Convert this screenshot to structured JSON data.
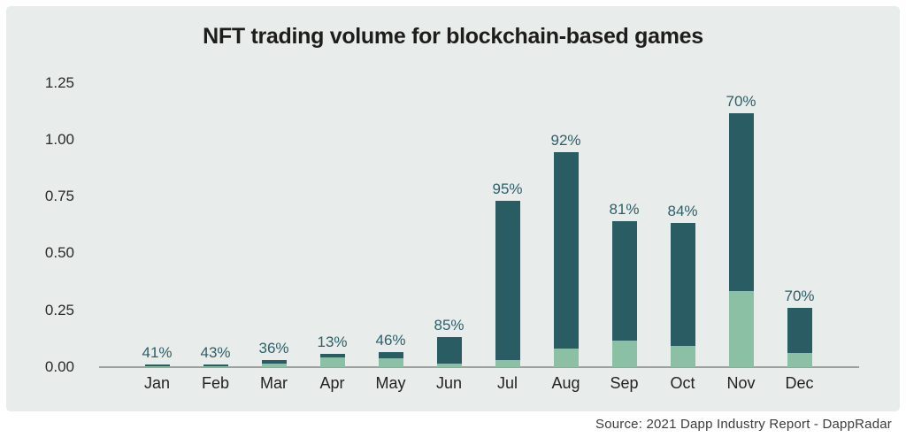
{
  "title": "NFT trading volume for blockchain-based games",
  "source": "Source: 2021 Dapp Industry Report - DappRadar",
  "colors": {
    "panel_background": "#e8ecea",
    "outer_background": "#ffffff",
    "dark_teal": "#2a5c63",
    "light_green": "#8bc0a4",
    "axis_line": "#9aa19e",
    "percent_label": "#2d6068",
    "axis_text": "#2a2a28",
    "title_text": "#1d1d1b",
    "source_text": "#3c3c3c"
  },
  "chart_data": {
    "type": "bar",
    "stacked": true,
    "title": "NFT trading volume for blockchain-based games",
    "categories": [
      "Jan",
      "Feb",
      "Mar",
      "Apr",
      "May",
      "Jun",
      "Jul",
      "Aug",
      "Sep",
      "Oct",
      "Nov",
      "Dec"
    ],
    "series": [
      {
        "name": "bottom-segment-light-green",
        "color": "#8bc0a4",
        "values": [
          0.002,
          0.003,
          0.016,
          0.044,
          0.039,
          0.017,
          0.032,
          0.082,
          0.116,
          0.092,
          0.333,
          0.062
        ]
      },
      {
        "name": "top-segment-dark-teal",
        "color": "#2a5c63",
        "values": [
          0.008,
          0.009,
          0.014,
          0.013,
          0.029,
          0.115,
          0.7,
          0.863,
          0.524,
          0.543,
          0.782,
          0.198
        ]
      }
    ],
    "totals": [
      0.01,
      0.012,
      0.03,
      0.057,
      0.068,
      0.132,
      0.732,
      0.945,
      0.64,
      0.635,
      1.115,
      0.26
    ],
    "bar_labels": [
      "41%",
      "43%",
      "36%",
      "13%",
      "46%",
      "85%",
      "95%",
      "92%",
      "81%",
      "84%",
      "70%",
      "70%"
    ],
    "yticks": [
      {
        "label": "1.25",
        "value": 1.25
      },
      {
        "label": "1.00",
        "value": 1.0
      },
      {
        "label": "0.75",
        "value": 0.75
      },
      {
        "label": "0.50",
        "value": 0.5
      },
      {
        "label": "0.25",
        "value": 0.25
      },
      {
        "label": "0.00",
        "value": 0.0
      }
    ],
    "ylim": [
      0,
      1.25
    ],
    "xlabel": "",
    "ylabel": "",
    "grid": false,
    "legend": "none"
  }
}
